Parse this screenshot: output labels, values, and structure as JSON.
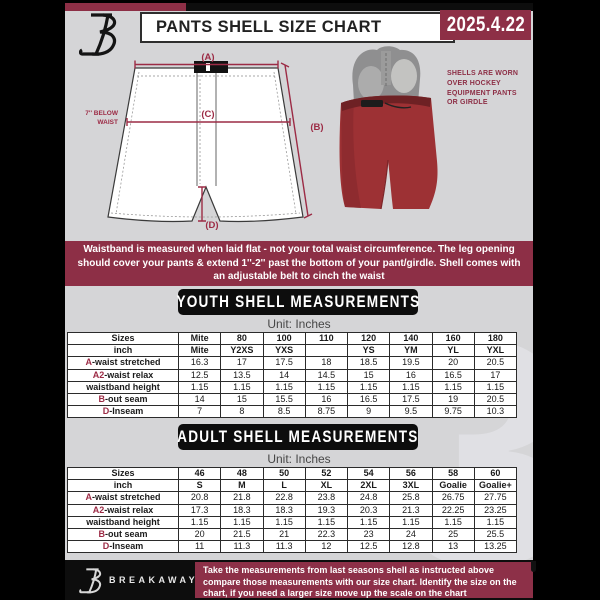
{
  "colors": {
    "accent_maroon": "#8d2f46",
    "diagram_maroon": "#9c2b45",
    "shell_red": "#9d3134",
    "card_gray": "#d5d5d7",
    "banner_black": "#0d0d0d"
  },
  "header": {
    "title": "PANTS SHELL SIZE CHART",
    "date": "2025.4.22"
  },
  "diagram": {
    "label_a": "(A)",
    "label_b": "(B)",
    "label_c": "(C)",
    "label_d": "(D)",
    "below_waist": "7'' BELOW\nWAIST",
    "shells_note": "SHELLS ARE WORN\nOVER HOCKEY\nEQUIPMENT PANTS\nOR GIRDLE"
  },
  "info_banner": {
    "text": "Waistband is measured when laid flat - not your total waist circumference. The leg opening should cover your pants & extend 1''-2'' past the bottom of your pant/girdle. Shell comes with an adjustable belt to cinch the waist"
  },
  "youth": {
    "title": "YOUTH SHELL MEASUREMENTS",
    "unit": "Unit: Inches",
    "rows": [
      {
        "prefix": "",
        "label": "Sizes",
        "bold": true,
        "values": [
          "Mite",
          "80",
          "100",
          "110",
          "120",
          "140",
          "160",
          "180"
        ]
      },
      {
        "prefix": "",
        "label": "inch",
        "bold": true,
        "values": [
          "Mite",
          "Y2XS",
          "YXS",
          "",
          "YS",
          "YM",
          "YL",
          "YXL"
        ]
      },
      {
        "prefix": "A",
        "label": "-waist stretched",
        "bold": false,
        "values": [
          "16.3",
          "17",
          "17.5",
          "18",
          "18.5",
          "19.5",
          "20",
          "20.5"
        ]
      },
      {
        "prefix": "A2",
        "label": "-waist relax",
        "bold": false,
        "values": [
          "12.5",
          "13.5",
          "14",
          "14.5",
          "15",
          "16",
          "16.5",
          "17"
        ]
      },
      {
        "prefix": "",
        "label": "waistband height",
        "bold": false,
        "values": [
          "1.15",
          "1.15",
          "1.15",
          "1.15",
          "1.15",
          "1.15",
          "1.15",
          "1.15"
        ]
      },
      {
        "prefix": "B",
        "label": "-out seam",
        "bold": false,
        "values": [
          "14",
          "15",
          "15.5",
          "16",
          "16.5",
          "17.5",
          "19",
          "20.5"
        ]
      },
      {
        "prefix": "D",
        "label": "-Inseam",
        "bold": false,
        "values": [
          "7",
          "8",
          "8.5",
          "8.75",
          "9",
          "9.5",
          "9.75",
          "10.3"
        ]
      }
    ]
  },
  "adult": {
    "title": "ADULT SHELL MEASUREMENTS",
    "unit": "Unit: Inches",
    "rows": [
      {
        "prefix": "",
        "label": "Sizes",
        "bold": true,
        "values": [
          "46",
          "48",
          "50",
          "52",
          "54",
          "56",
          "58",
          "60"
        ]
      },
      {
        "prefix": "",
        "label": "inch",
        "bold": true,
        "values": [
          "S",
          "M",
          "L",
          "XL",
          "2XL",
          "3XL",
          "Goalie",
          "Goalie+"
        ]
      },
      {
        "prefix": "A",
        "label": "-waist stretched",
        "bold": false,
        "values": [
          "20.8",
          "21.8",
          "22.8",
          "23.8",
          "24.8",
          "25.8",
          "26.75",
          "27.75"
        ]
      },
      {
        "prefix": "A2",
        "label": "-waist relax",
        "bold": false,
        "values": [
          "17.3",
          "18.3",
          "18.3",
          "19.3",
          "20.3",
          "21.3",
          "22.25",
          "23.25"
        ]
      },
      {
        "prefix": "",
        "label": "waistband height",
        "bold": false,
        "values": [
          "1.15",
          "1.15",
          "1.15",
          "1.15",
          "1.15",
          "1.15",
          "1.15",
          "1.15"
        ]
      },
      {
        "prefix": "B",
        "label": "-out seam",
        "bold": false,
        "values": [
          "20",
          "21.5",
          "21",
          "22.3",
          "23",
          "24",
          "25",
          "25.5"
        ]
      },
      {
        "prefix": "D",
        "label": "-Inseam",
        "bold": false,
        "values": [
          "11",
          "11.3",
          "11.3",
          "12",
          "12.5",
          "12.8",
          "13",
          "13.25"
        ]
      }
    ]
  },
  "footer": {
    "brand": "BREAKAWAY",
    "note": "Take the measurements from last seasons shell as instructed above compare those measurements  with our size chart. Identify the size on the chart, if you need a larger size move up the scale on the chart"
  }
}
